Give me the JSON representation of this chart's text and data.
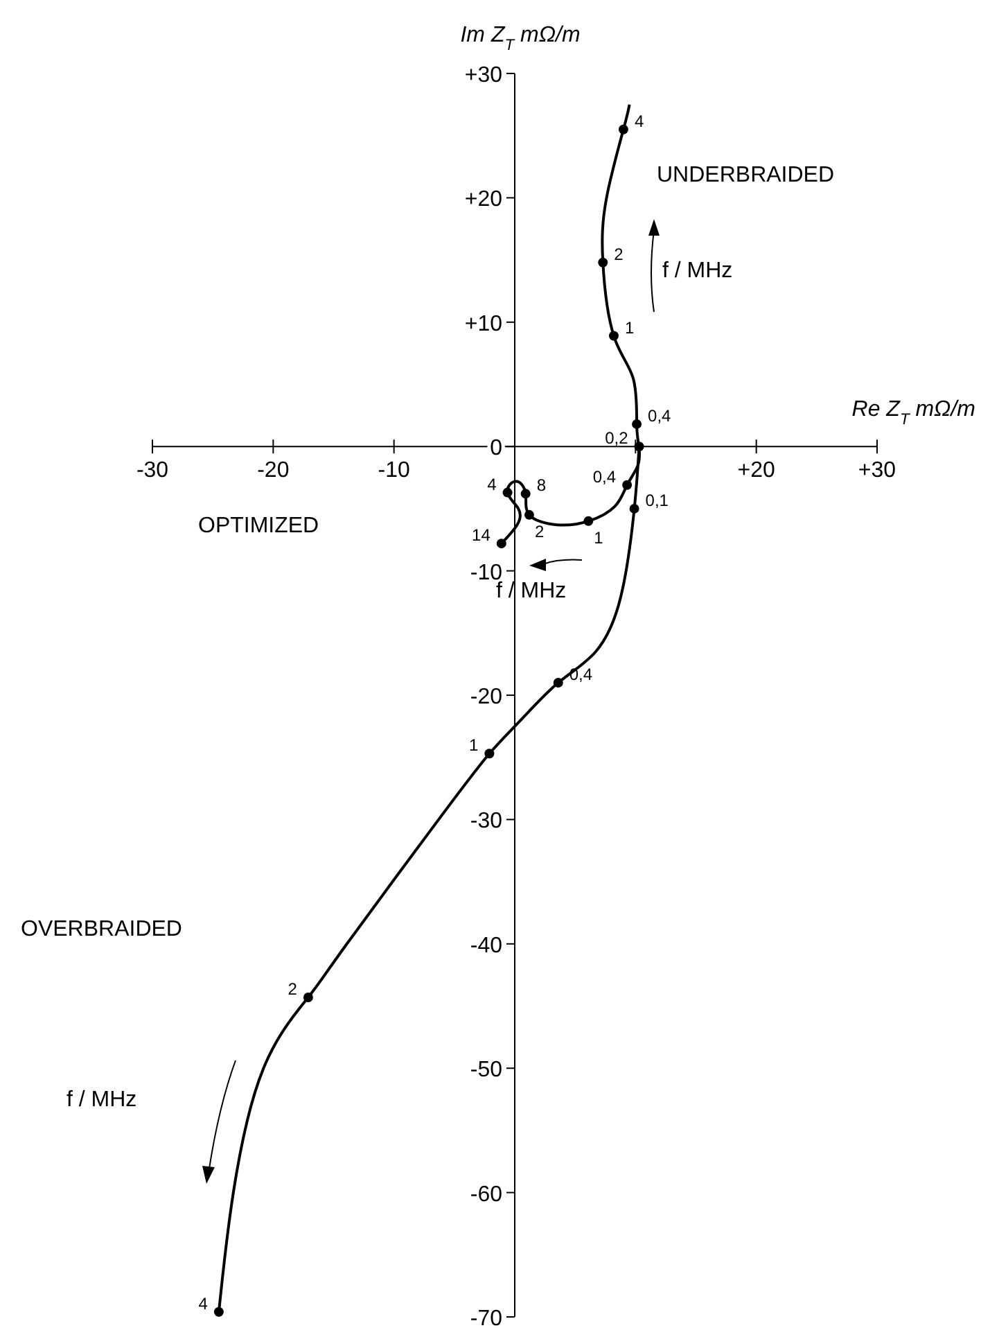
{
  "chart_data": {
    "type": "line",
    "xlabel": "Re Z$_{T}$ mΩ/m",
    "ylabel": "Im Z$_{T}$ mΩ/m",
    "xlim": [
      -30,
      30
    ],
    "ylim": [
      -70,
      30
    ],
    "xticks": [
      -30,
      -20,
      -10,
      {
        "value": 10,
        "label": null
      },
      {
        "value": 20,
        "label": "+20"
      },
      {
        "value": 30,
        "label": "+30"
      }
    ],
    "yticks": [
      {
        "value": 30,
        "label": "+30"
      },
      {
        "value": 20,
        "label": "+20"
      },
      {
        "value": 10,
        "label": "+10"
      },
      0,
      -10,
      -20,
      -30,
      -40,
      -50,
      -60,
      -70
    ],
    "annotations": [
      "UNDERBRAIDED",
      "OPTIMIZED",
      "OVERBRAIDED",
      "f / MHz",
      "f / MHz",
      "f / MHz",
      {
        "text": "0,2",
        "x": 10.3,
        "y": 0
      },
      {
        "text": "0,4",
        "x": 10.1,
        "y": 1.8
      },
      {
        "text": "1",
        "x": 8.2,
        "y": 8.9
      },
      {
        "text": "2",
        "x": 7.3,
        "y": 14.8
      },
      {
        "text": "4",
        "x": 9.0,
        "y": 25.5
      },
      {
        "text": "0,4",
        "x": 9.3,
        "y": -3.1
      },
      {
        "text": "1",
        "x": 6.1,
        "y": -6.0
      },
      {
        "text": "2",
        "x": 1.2,
        "y": -5.5
      },
      {
        "text": "8",
        "x": 0.9,
        "y": -3.8
      },
      {
        "text": "4",
        "x": -0.6,
        "y": -3.7
      },
      {
        "text": "14",
        "x": -1.1,
        "y": -7.8
      },
      {
        "text": "0,1",
        "x": 9.9,
        "y": -5.0
      },
      {
        "text": "0,4",
        "x": 3.6,
        "y": -19.0
      },
      {
        "text": "1",
        "x": -2.1,
        "y": -24.7
      },
      {
        "text": "2",
        "x": -17.1,
        "y": -44.3
      },
      {
        "text": "4",
        "x": -24.5,
        "y": -69.6
      }
    ],
    "series": [
      {
        "type": "line",
        "color": "#000000",
        "marker": "none",
        "x": [
          10.3,
          10.1,
          9.8,
          8.2,
          7.3,
          7.6,
          9.0,
          9.5
        ],
        "values": [
          0,
          1.8,
          5.5,
          8.9,
          14.8,
          20,
          25.5,
          27.5
        ]
      },
      {
        "type": "line",
        "color": "#000000",
        "marker": "none",
        "x": [
          10.3,
          10.2,
          9.3,
          8.3,
          6.1,
          3.5,
          1.2,
          0.9,
          0.1,
          -0.6,
          0.3,
          0.2,
          -1.1
        ],
        "values": [
          0,
          -1.5,
          -3.1,
          -4.8,
          -6.0,
          -6.3,
          -5.5,
          -3.8,
          -2.8,
          -3.7,
          -5.0,
          -6.3,
          -7.8
        ]
      },
      {
        "type": "line",
        "color": "#000000",
        "marker": "none",
        "x": [
          10.3,
          9.9,
          8.8,
          6.7,
          3.6,
          0.5,
          -2.1,
          -6.3,
          -13.9,
          -17.1,
          -20.8,
          -23.3,
          -24.5
        ],
        "values": [
          0,
          -5.0,
          -12,
          -16.5,
          -19.0,
          -22.0,
          -24.7,
          -30,
          -40,
          -44.3,
          -50,
          -60,
          -69.6
        ]
      },
      {
        "type": "scatter",
        "color": "#000000",
        "marker": "circle",
        "x": [
          10.3,
          10.1,
          8.2,
          7.3,
          9.0
        ],
        "values": [
          0,
          1.8,
          8.9,
          14.8,
          25.5
        ]
      },
      {
        "type": "scatter",
        "color": "#000000",
        "marker": "circle",
        "x": [
          9.3,
          6.1,
          1.2,
          0.9,
          -0.6,
          -1.1
        ],
        "values": [
          -3.1,
          -6.0,
          -5.5,
          -3.8,
          -3.7,
          -7.8
        ]
      },
      {
        "type": "scatter",
        "color": "#000000",
        "marker": "circle",
        "x": [
          9.9,
          3.6,
          -2.1,
          -17.1,
          -24.5
        ],
        "values": [
          -5.0,
          -19.0,
          -24.7,
          -44.3,
          -69.6
        ]
      }
    ]
  }
}
